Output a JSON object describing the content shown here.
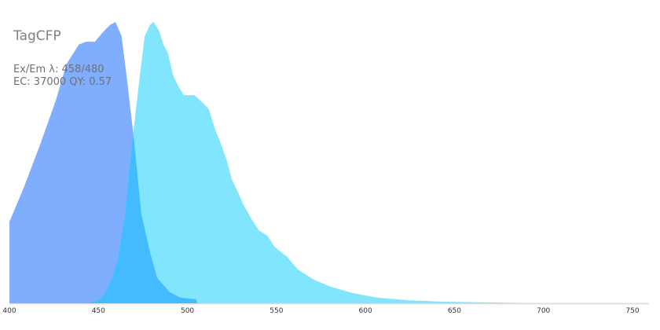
{
  "chart_data": {
    "type": "area",
    "title": "TagCFP",
    "info_line1": "Ex/Em λ: 458/480",
    "info_line2": "EC: 37000  QY: 0.57",
    "xlim": [
      400,
      760
    ],
    "ylim": [
      0,
      1
    ],
    "xticks": [
      "400",
      "450",
      "500",
      "550",
      "600",
      "650",
      "700",
      "750"
    ],
    "grid": false,
    "series": [
      {
        "kind": "excitation",
        "color": "#80AEFF",
        "x": [
          400,
          408,
          417,
          426,
          432,
          439,
          443,
          448,
          452,
          456.5,
          459.6,
          463,
          466,
          470,
          474,
          479,
          483,
          490,
          496,
          505,
          505.5
        ],
        "y": [
          0.29,
          0.41,
          0.56,
          0.72,
          0.85,
          0.92,
          0.93,
          0.93,
          0.96,
          0.99,
          1.0,
          0.95,
          0.8,
          0.58,
          0.32,
          0.18,
          0.09,
          0.04,
          0.02,
          0.014,
          0
        ]
      },
      {
        "kind": "emission",
        "color": "#80E5FD",
        "x": [
          439,
          448,
          452,
          456.5,
          461,
          465,
          467.5,
          470,
          472,
          474,
          476,
          479,
          481,
          484,
          486.5,
          489,
          492,
          495,
          498,
          504,
          509,
          512,
          516,
          518,
          522,
          525,
          528,
          531.5,
          536,
          540,
          545,
          549,
          556,
          562,
          571,
          580,
          593,
          606.5,
          624,
          642,
          668,
          699
        ],
        "y": [
          0,
          0.005,
          0.02,
          0.07,
          0.16,
          0.32,
          0.49,
          0.63,
          0.74,
          0.85,
          0.95,
          0.99,
          1.0,
          0.97,
          0.92,
          0.89,
          0.81,
          0.77,
          0.74,
          0.74,
          0.71,
          0.69,
          0.61,
          0.58,
          0.51,
          0.44,
          0.4,
          0.35,
          0.3,
          0.26,
          0.24,
          0.2,
          0.165,
          0.12,
          0.084,
          0.06,
          0.036,
          0.02,
          0.011,
          0.006,
          0.003,
          0
        ]
      }
    ],
    "overlap_color": "#42BCFE",
    "axis_color": "#E0E0E0"
  }
}
